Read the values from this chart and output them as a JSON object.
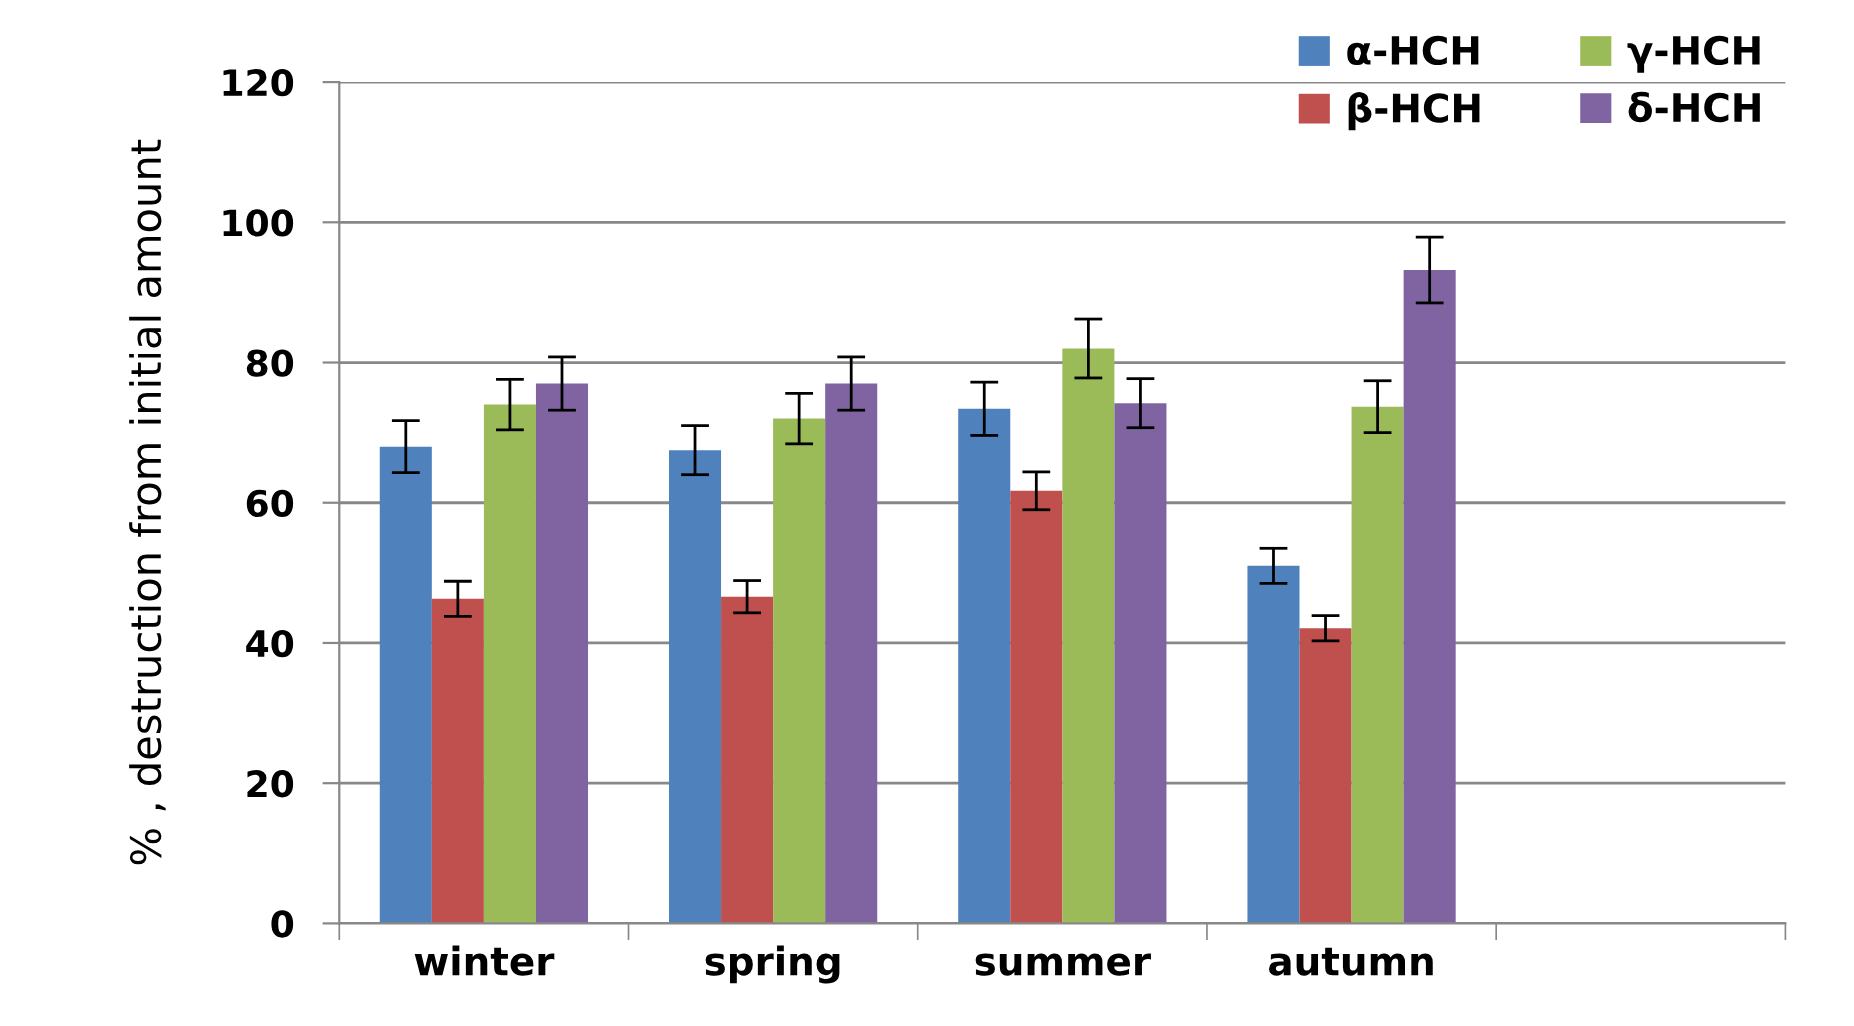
{
  "chart_data": {
    "type": "bar",
    "ylabel": "% , destruction from initial amount",
    "categories": [
      "winter",
      "spring",
      "summer",
      "autumn",
      null
    ],
    "series": [
      {
        "name": "α-HCH",
        "color": "#4f81bd",
        "values": [
          68,
          67.5,
          73.4,
          51,
          null
        ],
        "errors": [
          3.7,
          3.5,
          3.8,
          2.5,
          null
        ]
      },
      {
        "name": "β-HCH",
        "color": "#c0504d",
        "values": [
          46.3,
          46.6,
          61.7,
          42.1,
          null
        ],
        "errors": [
          2.5,
          2.3,
          2.7,
          1.8,
          null
        ]
      },
      {
        "name": "γ-HCH",
        "color": "#9bbb59",
        "values": [
          74,
          72,
          82,
          73.7,
          null
        ],
        "errors": [
          3.6,
          3.6,
          4.2,
          3.7,
          null
        ]
      },
      {
        "name": "δ-HCH",
        "color": "#8064a2",
        "values": [
          77,
          77,
          74.2,
          93.2,
          null
        ],
        "errors": [
          3.8,
          3.8,
          3.5,
          4.7,
          null
        ]
      }
    ],
    "ylim": [
      0,
      120
    ],
    "yticks": [
      0,
      20,
      40,
      60,
      80,
      100,
      120
    ],
    "grid": "y",
    "legend": "top right"
  }
}
